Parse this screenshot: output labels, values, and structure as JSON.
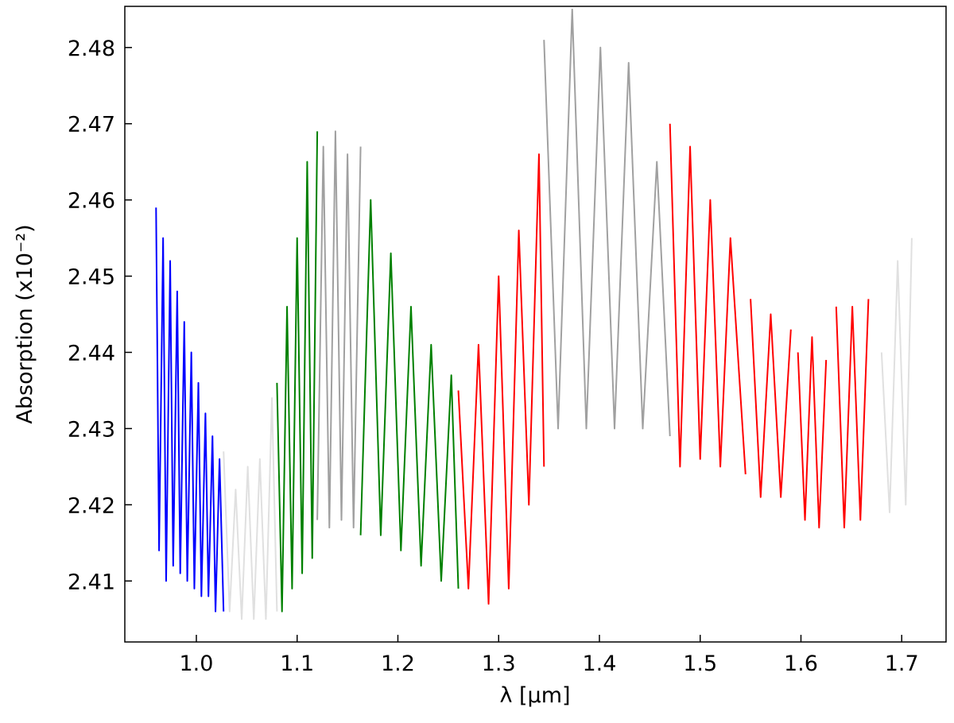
{
  "chart_data": {
    "type": "line",
    "xlabel": "λ [μm]",
    "ylabel": "Absorption (x10⁻²)",
    "xlim": [
      0.929,
      1.744
    ],
    "ylim": [
      2.402,
      2.4854
    ],
    "xticks": [
      {
        "value": 1,
        "label": "1.0"
      },
      1.1,
      1.2,
      1.3,
      1.4,
      1.5,
      1.6,
      1.7
    ],
    "yticks": [
      2.41,
      2.42,
      2.43,
      2.44,
      2.45,
      2.46,
      2.47,
      2.48
    ],
    "series": [
      {
        "color": "#0000ff",
        "x": [
          0.96,
          0.963,
          0.967,
          0.97,
          0.974,
          0.977,
          0.981,
          0.984,
          0.988,
          0.991,
          0.995,
          0.998,
          1.002,
          1.005,
          1.009,
          1.012,
          1.016,
          1.019,
          1.023,
          1.027
        ],
        "values": [
          2.459,
          2.414,
          2.455,
          2.41,
          2.452,
          2.412,
          2.448,
          2.411,
          2.444,
          2.41,
          2.44,
          2.409,
          2.436,
          2.408,
          2.432,
          2.408,
          2.429,
          2.406,
          2.426,
          2.406
        ]
      },
      {
        "color": "#e0e0e0",
        "x": [
          1.027,
          1.033,
          1.039,
          1.045,
          1.051,
          1.057,
          1.063,
          1.069,
          1.075,
          1.08
        ],
        "values": [
          2.427,
          2.406,
          2.422,
          2.405,
          2.425,
          2.405,
          2.426,
          2.405,
          2.434,
          2.406
        ]
      },
      {
        "color": "#008000",
        "x": [
          1.08,
          1.085,
          1.09,
          1.095,
          1.1,
          1.105,
          1.11,
          1.115,
          1.12
        ],
        "values": [
          2.436,
          2.406,
          2.446,
          2.409,
          2.455,
          2.411,
          2.465,
          2.413,
          2.469
        ]
      },
      {
        "color": "#a0a0a0",
        "x": [
          1.12,
          1.126,
          1.132,
          1.138,
          1.144,
          1.15,
          1.156,
          1.163
        ],
        "values": [
          2.418,
          2.467,
          2.417,
          2.469,
          2.418,
          2.466,
          2.417,
          2.467
        ]
      },
      {
        "color": "#008000",
        "x": [
          1.163,
          1.173,
          1.183,
          1.193,
          1.203,
          1.213,
          1.223,
          1.233,
          1.243,
          1.253,
          1.26
        ],
        "values": [
          2.416,
          2.46,
          2.416,
          2.453,
          2.414,
          2.446,
          2.412,
          2.441,
          2.41,
          2.437,
          2.409
        ]
      },
      {
        "color": "#ff0000",
        "x": [
          1.26,
          1.27,
          1.28,
          1.29,
          1.3,
          1.31,
          1.32,
          1.33,
          1.34,
          1.345
        ],
        "values": [
          2.435,
          2.409,
          2.441,
          2.407,
          2.45,
          2.409,
          2.456,
          2.42,
          2.466,
          2.425
        ]
      },
      {
        "color": "#a0a0a0",
        "x": [
          1.345,
          1.359,
          1.373,
          1.387,
          1.401,
          1.415,
          1.429,
          1.443,
          1.457,
          1.47
        ],
        "values": [
          2.481,
          2.43,
          2.485,
          2.43,
          2.48,
          2.43,
          2.478,
          2.43,
          2.465,
          2.429
        ]
      },
      {
        "color": "#ff0000",
        "x": [
          1.47,
          1.48,
          1.49,
          1.5,
          1.51,
          1.52,
          1.53,
          1.545
        ],
        "values": [
          2.47,
          2.425,
          2.467,
          2.426,
          2.46,
          2.425,
          2.455,
          2.424
        ]
      },
      {
        "color": "#ff0000",
        "x": [
          1.55,
          1.56,
          1.57,
          1.58,
          1.59
        ],
        "values": [
          2.447,
          2.421,
          2.445,
          2.421,
          2.443
        ]
      },
      {
        "color": "#ff0000",
        "x": [
          1.597,
          1.604,
          1.611,
          1.618,
          1.625
        ],
        "values": [
          2.44,
          2.418,
          2.442,
          2.417,
          2.439
        ]
      },
      {
        "color": "#ff0000",
        "x": [
          1.635,
          1.643,
          1.651,
          1.659,
          1.667
        ],
        "values": [
          2.446,
          2.417,
          2.446,
          2.418,
          2.447
        ]
      },
      {
        "color": "#e0e0e0",
        "x": [
          1.68,
          1.688,
          1.696,
          1.704,
          1.71
        ],
        "values": [
          2.44,
          2.419,
          2.452,
          2.42,
          2.455
        ]
      }
    ]
  }
}
